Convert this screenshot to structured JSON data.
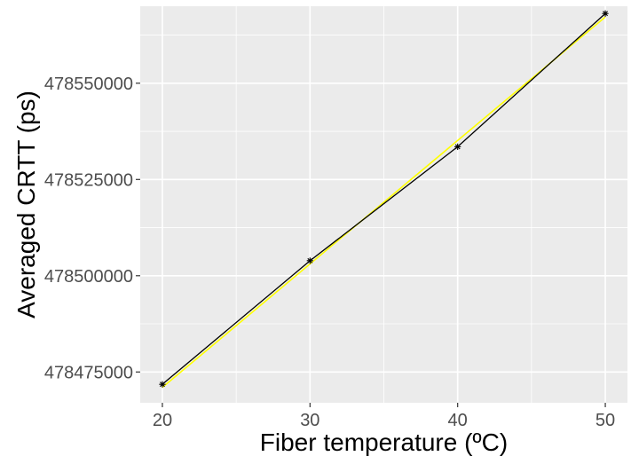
{
  "chart_data": {
    "type": "line",
    "title": "",
    "xlabel": "Fiber temperature (ºC)",
    "ylabel": "Averaged CRTT (ps)",
    "xlim": [
      18.5,
      51.5
    ],
    "ylim": [
      478467000,
      478570000
    ],
    "x_ticks": [
      20,
      30,
      40,
      50
    ],
    "x_tick_labels": [
      "20",
      "30",
      "40",
      "50"
    ],
    "y_ticks": [
      478475000,
      478500000,
      478525000,
      478550000
    ],
    "y_tick_labels": [
      "478475000",
      "478500000",
      "478525000",
      "478550000"
    ],
    "grid": true,
    "series": [
      {
        "style": "line-with-star-markers",
        "color": "#000000",
        "x": [
          20,
          30,
          40,
          50
        ],
        "y": [
          478471800,
          478503900,
          478533500,
          478568100
        ]
      },
      {
        "style": "fit-line",
        "color": "#ffff00",
        "x": [
          20,
          50
        ],
        "y": [
          478471000,
          478567200
        ]
      }
    ],
    "panel_background": "#ebebeb",
    "grid_color": "#ffffff"
  }
}
